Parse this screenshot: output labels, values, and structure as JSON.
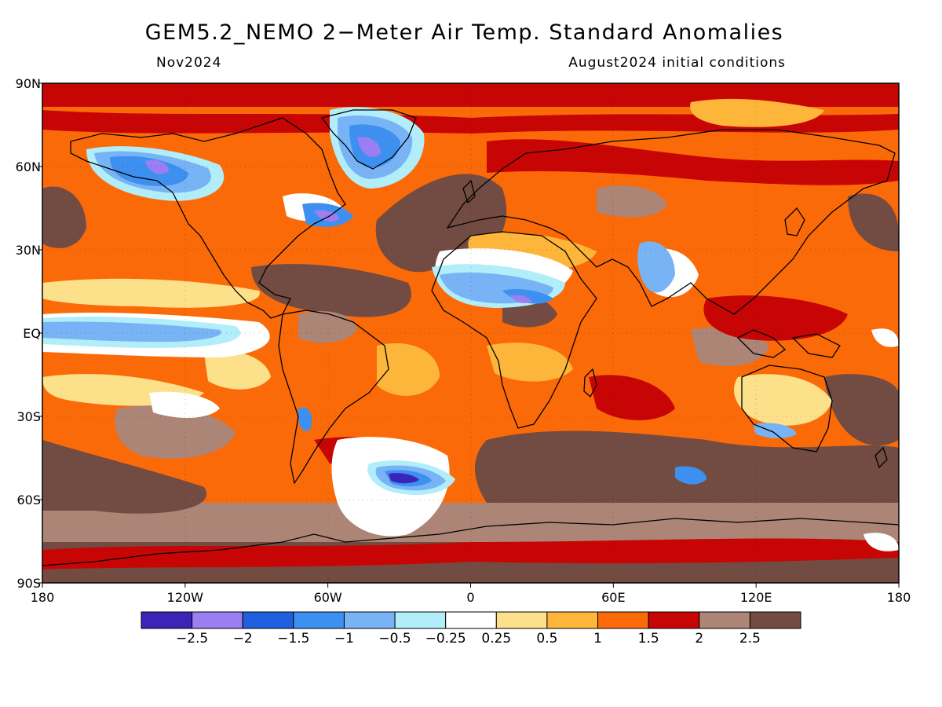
{
  "title": "GEM5.2_NEMO 2−Meter Air Temp. Standard Anomalies",
  "subtitle_left": "Nov2024",
  "subtitle_right": "August2024 initial conditions",
  "lat_labels": [
    "90N",
    "60N",
    "30N",
    "EQ",
    "30S",
    "60S",
    "90S"
  ],
  "lon_labels": [
    "180",
    "120W",
    "60W",
    "0",
    "60E",
    "120E",
    "180"
  ],
  "colorbar": {
    "colors": [
      "#3b24b8",
      "#9a7ef2",
      "#1f5fe0",
      "#3d90f0",
      "#78b4f5",
      "#b2eefa",
      "#ffffff",
      "#fde18a",
      "#fdb63a",
      "#fb6a08",
      "#c80505",
      "#ad8577",
      "#724c42"
    ],
    "labels": [
      "−2.5",
      "−2",
      "−1.5",
      "−1",
      "−0.5",
      "−0.25",
      "0.25",
      "0.5",
      "1",
      "1.5",
      "2",
      "2.5"
    ]
  },
  "colors": {
    "hot": "#724c42",
    "warm": "#c80505",
    "cool": "#3d90f0"
  }
}
